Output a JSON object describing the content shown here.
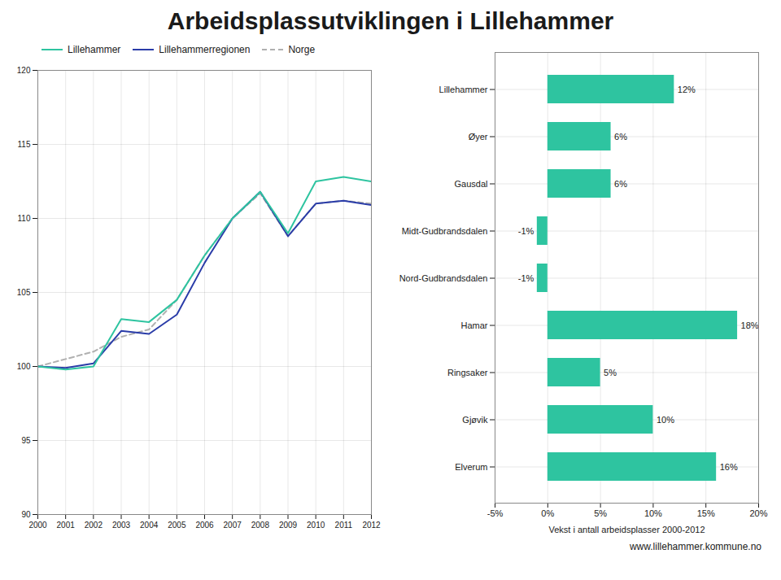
{
  "chart_data": [
    {
      "type": "line",
      "title": "Arbeidsplassutviklingen i Lillehammer",
      "x": [
        2000,
        2001,
        2002,
        2003,
        2004,
        2005,
        2006,
        2007,
        2008,
        2009,
        2010,
        2011,
        2012
      ],
      "series": [
        {
          "name": "Lillehammer",
          "color": "#2ec4a0",
          "line_style": "solid",
          "values": [
            100.0,
            99.8,
            100.0,
            103.2,
            103.0,
            104.5,
            107.5,
            110.0,
            111.8,
            109.0,
            112.5,
            112.8,
            112.5
          ]
        },
        {
          "name": "Lillehammerregionen",
          "color": "#2a3ca8",
          "line_style": "solid",
          "values": [
            100.0,
            99.9,
            100.2,
            102.4,
            102.2,
            103.5,
            107.0,
            110.0,
            111.8,
            108.8,
            111.0,
            111.2,
            110.9
          ]
        },
        {
          "name": "Norge",
          "color": "#b0b0b0",
          "line_style": "dashed",
          "values": [
            100.0,
            100.5,
            101.0,
            102.0,
            102.5,
            104.5,
            107.5,
            110.0,
            111.7,
            108.8,
            111.0,
            111.2,
            111.0
          ]
        }
      ],
      "xlim": [
        2000,
        2012
      ],
      "xticks": [
        2000,
        2001,
        2002,
        2003,
        2004,
        2005,
        2006,
        2007,
        2008,
        2009,
        2010,
        2011,
        2012
      ],
      "ylim": [
        90,
        120
      ],
      "yticks": [
        90,
        95,
        100,
        105,
        110,
        115,
        120
      ],
      "grid": true,
      "legend": "upper left"
    },
    {
      "type": "bar",
      "orientation": "horizontal",
      "categories": [
        "Lillehammer",
        "Øyer",
        "Gausdal",
        "Midt-Gudbrandsdalen",
        "Nord-Gudbrandsdalen",
        "Hamar",
        "Ringsaker",
        "Gjøvik",
        "Elverum"
      ],
      "values": [
        12,
        6,
        6,
        -1,
        -1,
        18,
        5,
        10,
        16
      ],
      "value_labels": [
        "12%",
        "6%",
        "6%",
        "-1%",
        "-1%",
        "18%",
        "5%",
        "10%",
        "16%"
      ],
      "data_labels": true,
      "color": "#2ec4a0",
      "xlim": [
        -5,
        20
      ],
      "xticks": [
        {
          "value": -5,
          "label": "-5%"
        },
        {
          "value": 0,
          "label": "0%"
        },
        {
          "value": 5,
          "label": "5%"
        },
        {
          "value": 10,
          "label": "10%"
        },
        {
          "value": 15,
          "label": "15%"
        },
        {
          "value": 20,
          "label": "20%"
        }
      ],
      "xlabel": "Vekst i antall arbeidsplasser 2000-2012",
      "grid": true,
      "annotations": [
        "www.lillehammer.kommune.no"
      ]
    }
  ]
}
